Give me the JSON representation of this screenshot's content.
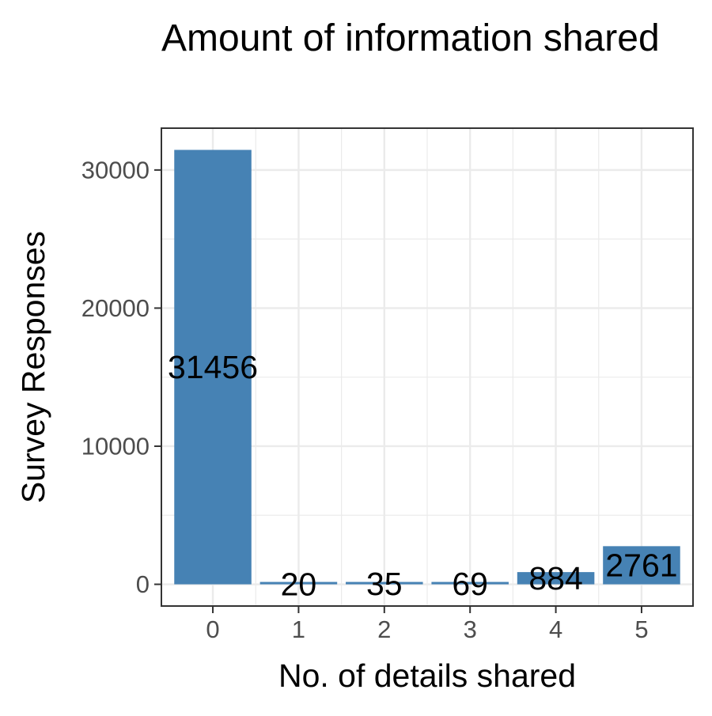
{
  "chart_data": {
    "type": "bar",
    "title": "Amount of information shared",
    "xlabel": "No. of details shared",
    "ylabel": "Survey Responses",
    "categories": [
      "0",
      "1",
      "2",
      "3",
      "4",
      "5"
    ],
    "values": [
      31456,
      20,
      35,
      69,
      884,
      2761
    ],
    "value_labels": [
      "31456",
      "20",
      "35",
      "69",
      "884",
      "2761"
    ],
    "yticks": [
      0,
      10000,
      20000,
      30000
    ],
    "ytick_labels": [
      "0",
      "10000",
      "20000",
      "30000"
    ],
    "ylim": [
      -1573,
      33029
    ],
    "grid": true,
    "legend": "none",
    "colors": {
      "bar": "#4682B4",
      "grid": "#EBEBEB",
      "panel_border": "#333333",
      "tick_label": "#4D4D4D",
      "text": "#000000"
    }
  }
}
